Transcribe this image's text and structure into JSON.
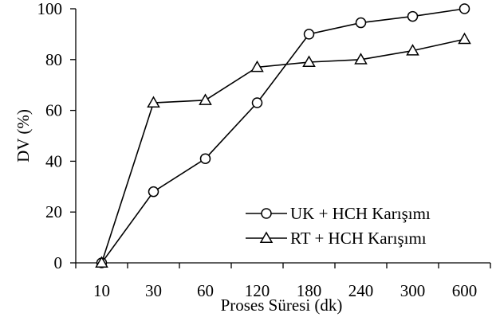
{
  "chart_data": {
    "type": "line",
    "categories": [
      "10",
      "30",
      "60",
      "120",
      "180",
      "240",
      "300",
      "600"
    ],
    "xlabel": "Proses Süresi (dk)",
    "ylabel": "DV (%)",
    "ylim": [
      0,
      100
    ],
    "yticks": [
      "0",
      "20",
      "40",
      "60",
      "80",
      "100"
    ],
    "grid": false,
    "legend_position": "bottom-right",
    "series": [
      {
        "name": "UK + HCH Karışımı",
        "marker": "circle",
        "color": "#000000",
        "values": [
          0,
          28,
          41,
          63,
          90,
          94.5,
          97,
          100
        ]
      },
      {
        "name": "RT + HCH Karışımı",
        "marker": "triangle",
        "color": "#000000",
        "values": [
          0,
          63,
          64,
          77,
          79,
          80,
          83.5,
          88
        ]
      }
    ]
  }
}
